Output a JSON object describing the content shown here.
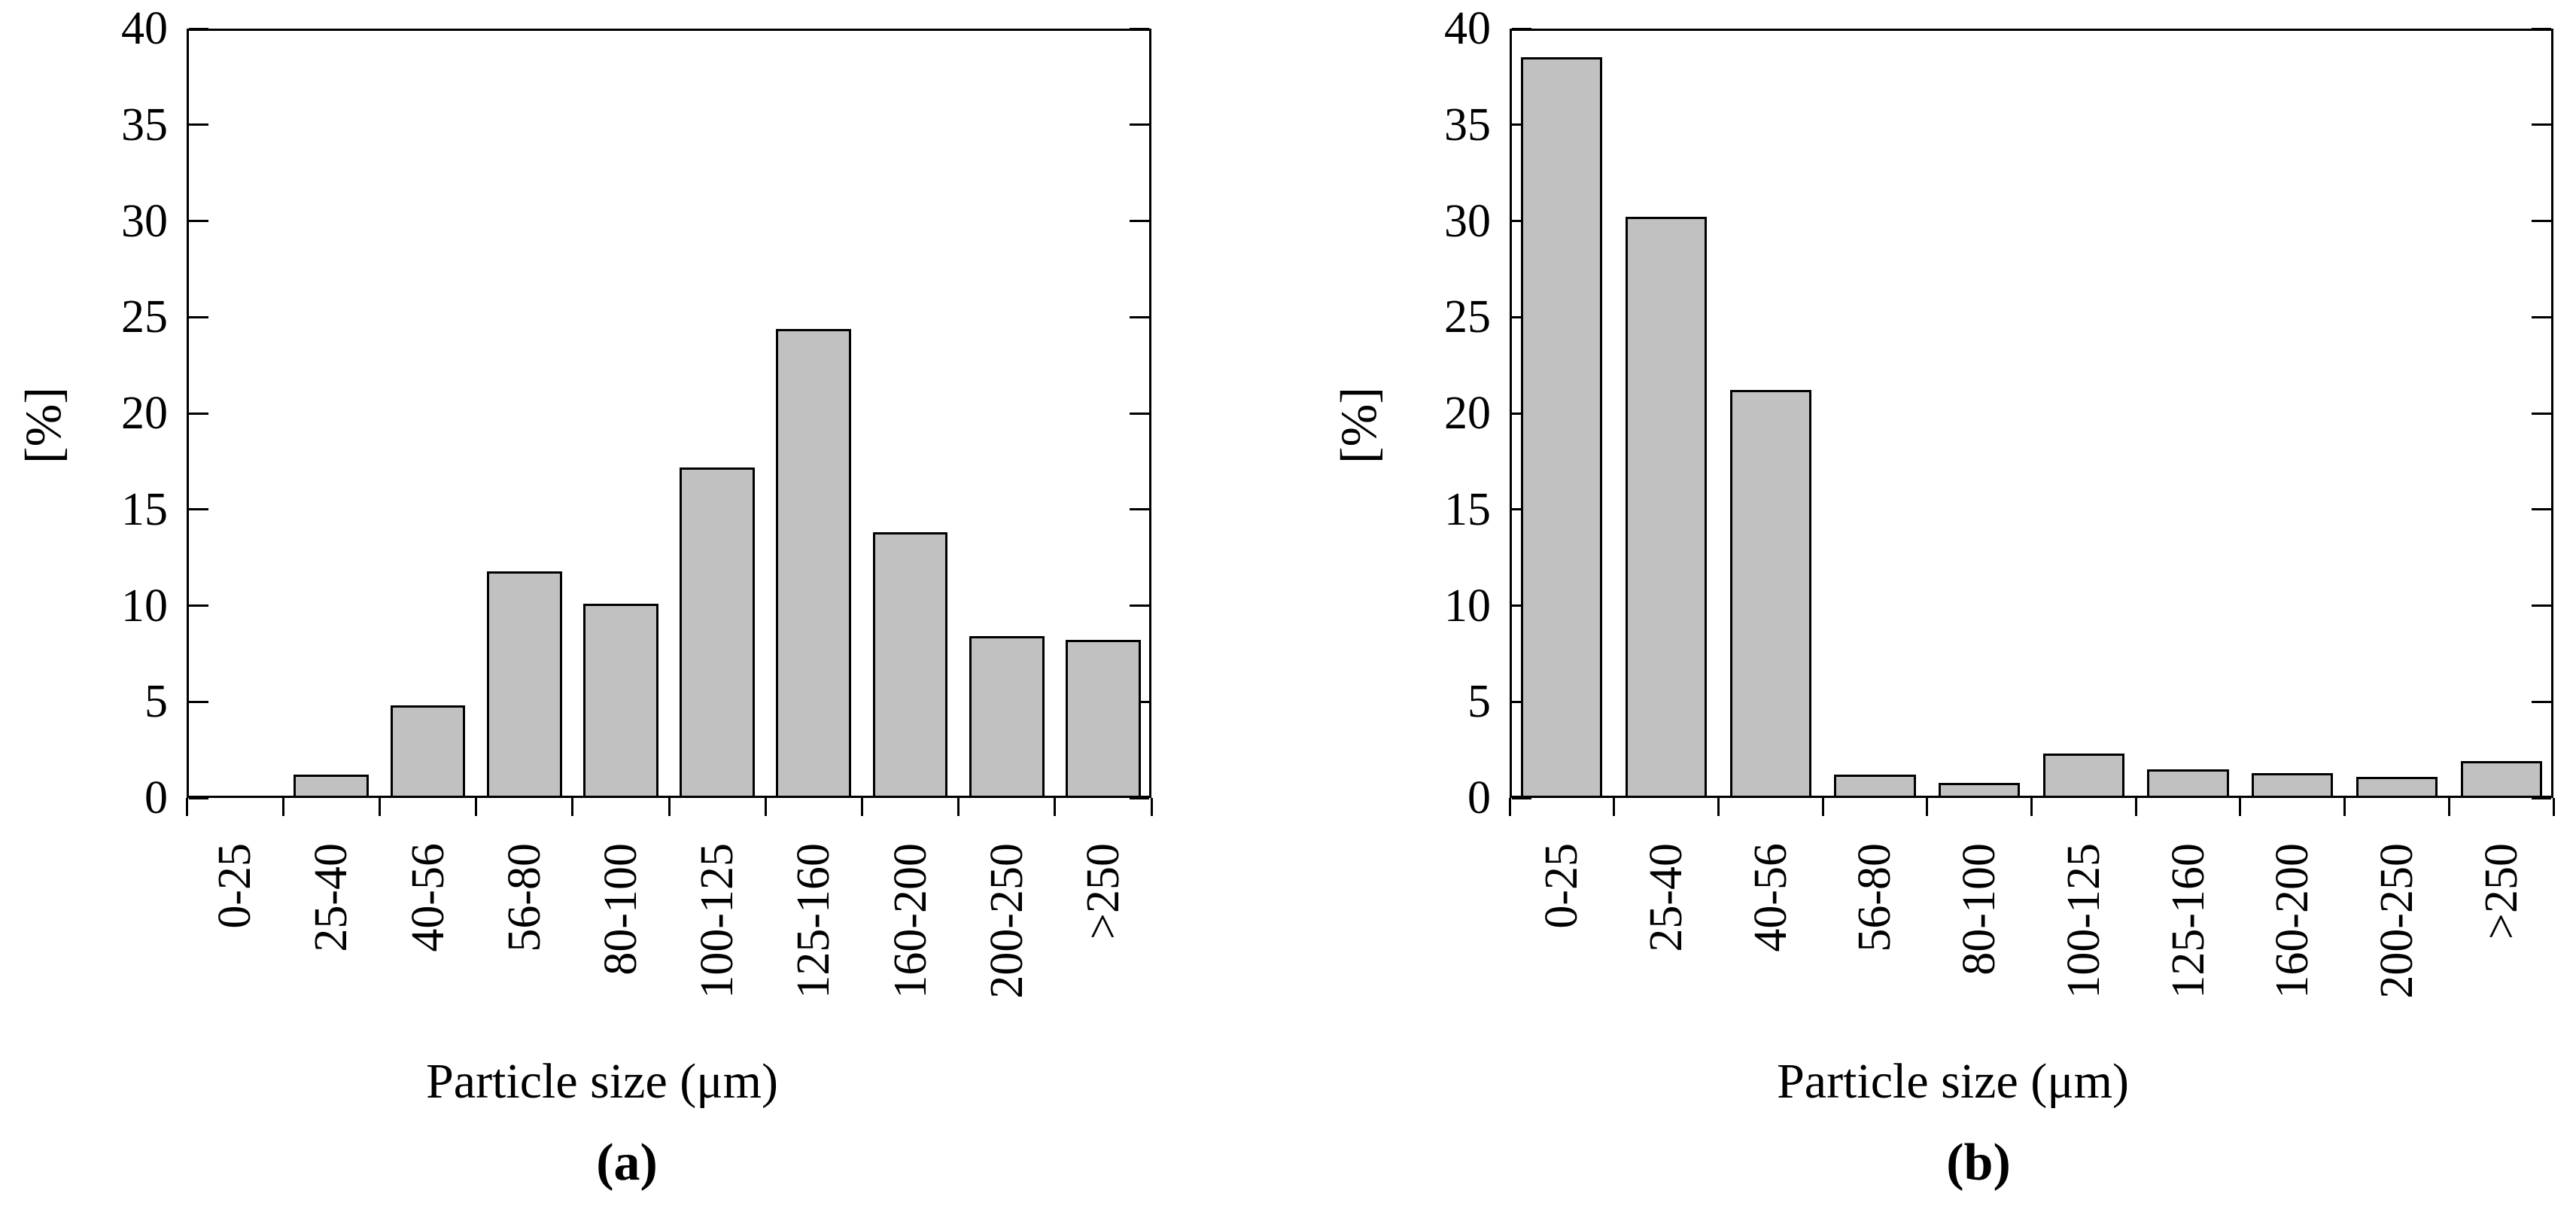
{
  "figure": {
    "background": "#ffffff",
    "bar_fill": "#c1c1c1",
    "bar_stroke": "#000000",
    "axis_color": "#000000",
    "text_color": "#000000"
  },
  "chart_data": [
    {
      "type": "bar",
      "panel": "(a)",
      "title": "",
      "xlabel": "Particle size (μm)",
      "ylabel": "[%]",
      "categories": [
        "0-25",
        "25-40",
        "40-56",
        "56-80",
        "80-100",
        "100-125",
        "125-160",
        "160-200",
        "200-250",
        ">250"
      ],
      "values": [
        0,
        1.2,
        4.8,
        11.8,
        10.1,
        17.2,
        24.4,
        13.8,
        8.4,
        8.2
      ],
      "ylim": [
        0,
        40
      ],
      "yticks": [
        0,
        5,
        10,
        15,
        20,
        25,
        30,
        35,
        40
      ],
      "grid": false,
      "legend": "none",
      "bar_width_fraction": 0.78
    },
    {
      "type": "bar",
      "panel": "(b)",
      "title": "",
      "xlabel": "Particle size (μm)",
      "ylabel": "[%]",
      "categories": [
        "0-25",
        "25-40",
        "40-56",
        "56-80",
        "80-100",
        "100-125",
        "125-160",
        "160-200",
        "200-250",
        ">250"
      ],
      "values": [
        38.5,
        30.2,
        21.2,
        1.2,
        0.8,
        2.3,
        1.5,
        1.3,
        1.1,
        1.9
      ],
      "ylim": [
        0,
        40
      ],
      "yticks": [
        0,
        5,
        10,
        15,
        20,
        25,
        30,
        35,
        40
      ],
      "grid": false,
      "legend": "none",
      "bar_width_fraction": 0.78
    }
  ]
}
